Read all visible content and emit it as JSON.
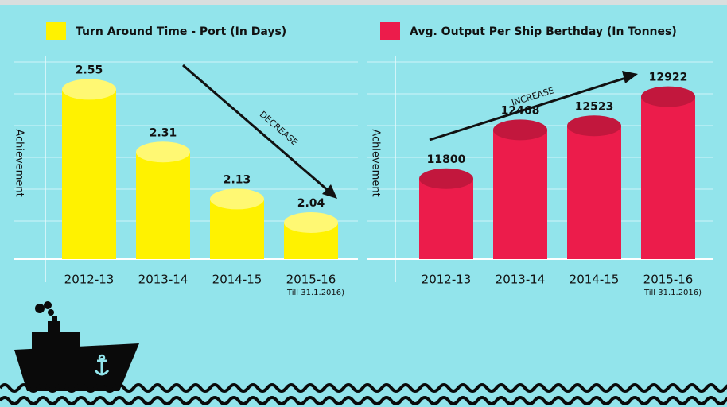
{
  "chart_data": [
    {
      "type": "bar",
      "series": [
        {
          "name": "Turn Around Time -  Port (In Days)",
          "color": "#fff200",
          "values": [
            2.55,
            2.31,
            2.13,
            2.04
          ]
        }
      ],
      "categories": [
        "2012-13",
        "2013-14",
        "2014-15",
        "2015-16"
      ],
      "category_note": "Till 31.1.2016)",
      "y_label": "Achievement",
      "annotation": "DECREASE",
      "ylim": [
        1.9,
        2.6
      ]
    },
    {
      "type": "bar",
      "series": [
        {
          "name": "Avg. Output Per Ship Berthday (In Tonnes)",
          "color": "#ec1c4b",
          "values": [
            11800,
            12468,
            12523,
            12922
          ]
        }
      ],
      "categories": [
        "2012-13",
        "2013-14",
        "2014-15",
        "2015-16"
      ],
      "category_note": "Till 31.1.2016)",
      "y_label": "Achievement",
      "annotation": "INCREASE",
      "ylim": [
        10700,
        13200
      ]
    }
  ]
}
